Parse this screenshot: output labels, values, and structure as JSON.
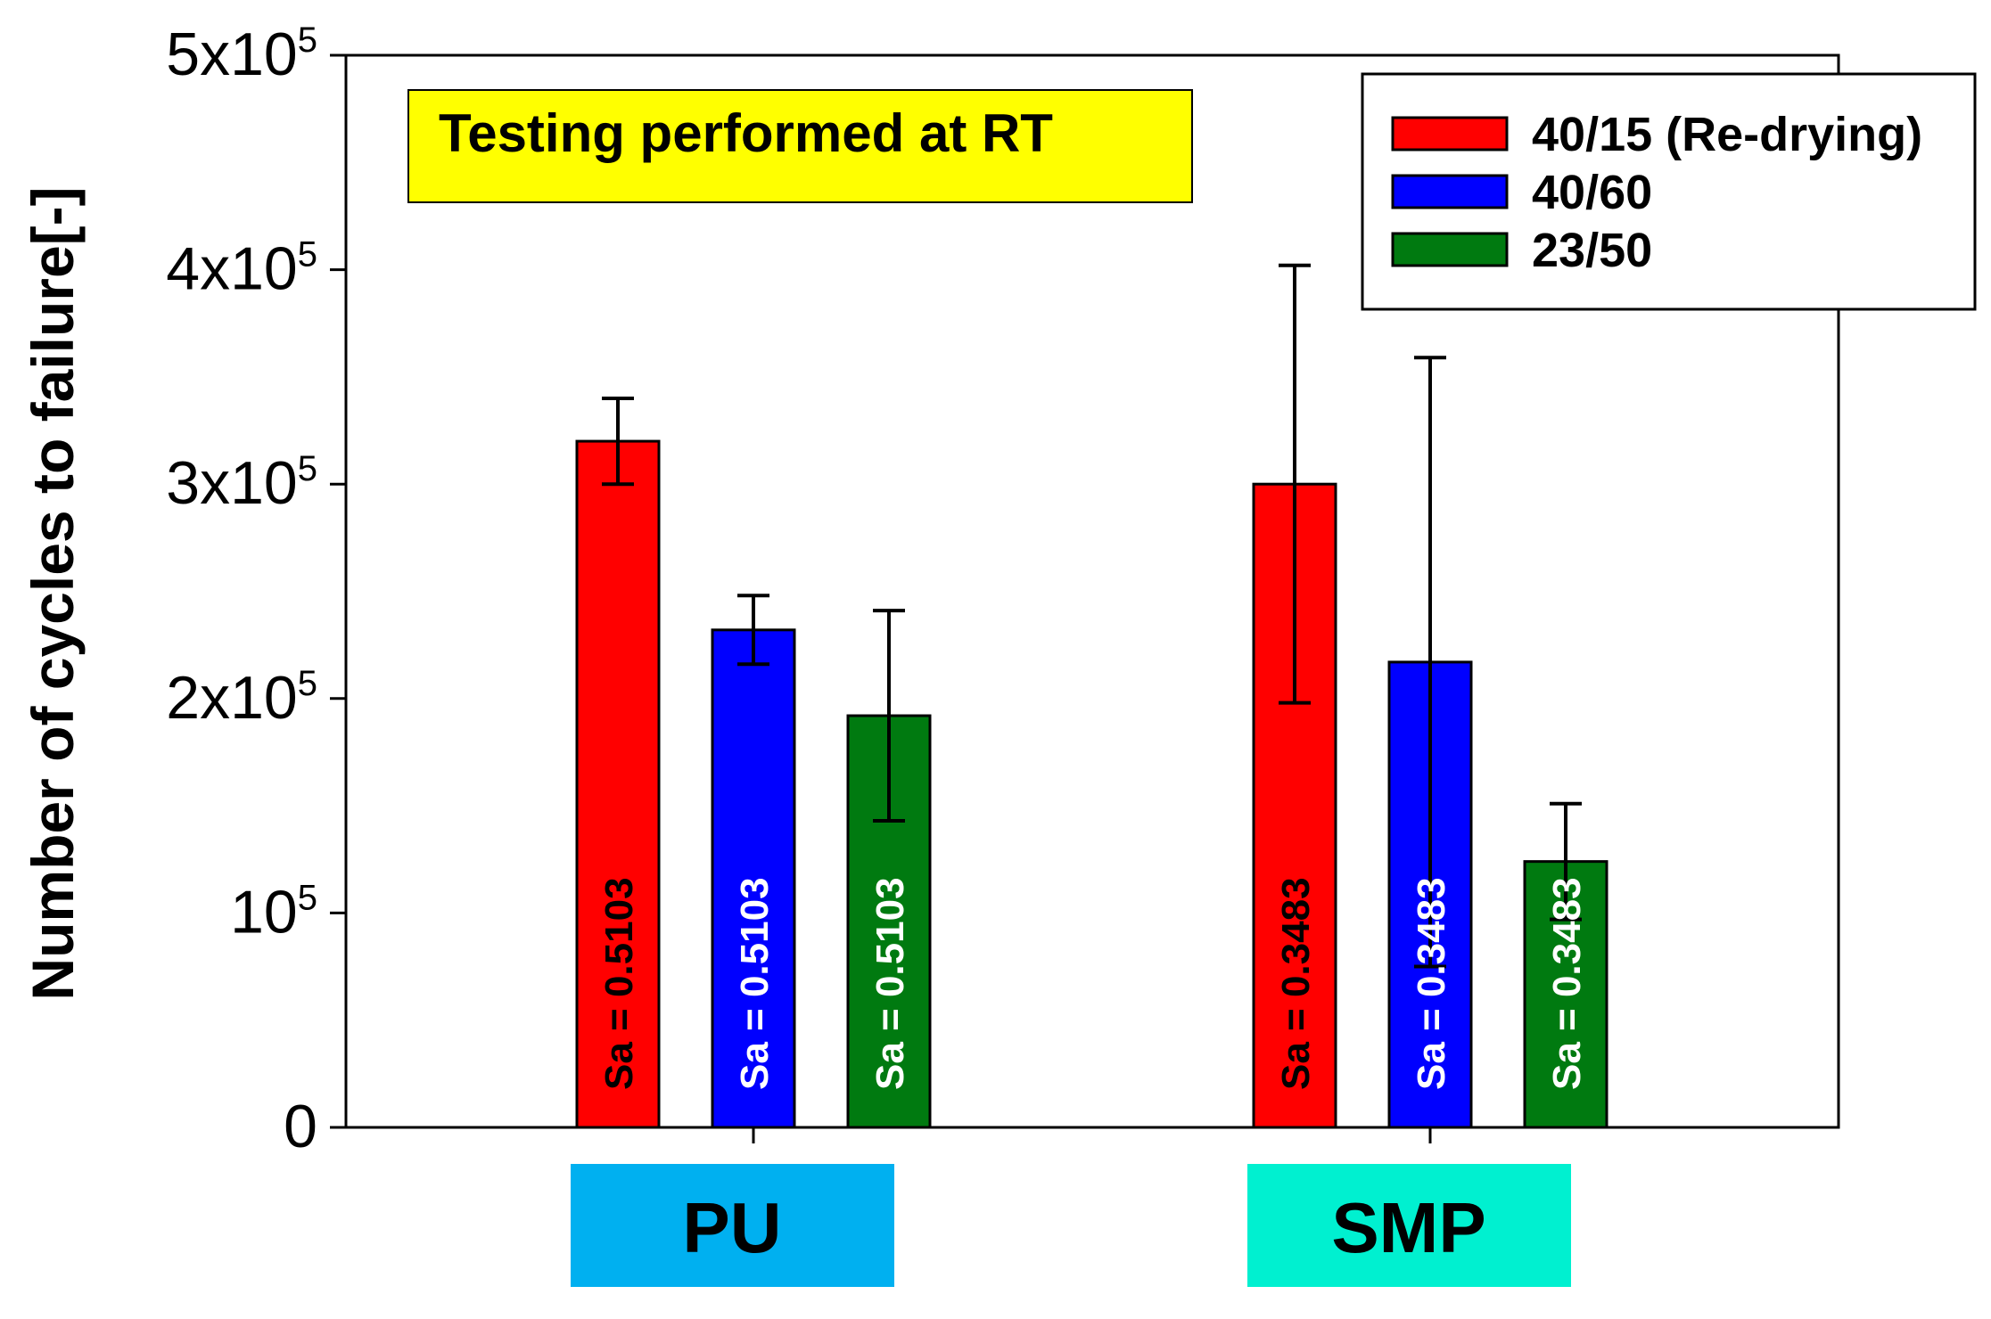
{
  "chart_data": {
    "type": "bar",
    "title": "",
    "xlabel": "",
    "ylabel": "Number of cycles to failure[-]",
    "ylim": [
      0,
      500000
    ],
    "y_ticks": [
      {
        "value": 0,
        "base": "0",
        "sup": ""
      },
      {
        "value": 100000,
        "base": "10",
        "sup": "5"
      },
      {
        "value": 200000,
        "base": "2x10",
        "sup": "5"
      },
      {
        "value": 300000,
        "base": "3x10",
        "sup": "5"
      },
      {
        "value": 400000,
        "base": "4x10",
        "sup": "5"
      },
      {
        "value": 500000,
        "base": "5x10",
        "sup": "5"
      }
    ],
    "categories": [
      "PU",
      "SMP"
    ],
    "category_colors": [
      "#00b0f0",
      "#00f0d0"
    ],
    "series": [
      {
        "name": "40/15 (Re-drying)",
        "color": "#ff0000",
        "label_color": "#000000",
        "values": [
          320000,
          300000
        ],
        "errors": [
          20000,
          102000
        ],
        "bar_labels": [
          "Sa = 0.5103",
          "Sa = 0.3483"
        ]
      },
      {
        "name": "40/60",
        "color": "#0000ff",
        "label_color": "#ffffff",
        "values": [
          232000,
          217000
        ],
        "errors": [
          16000,
          142000
        ],
        "bar_labels": [
          "Sa = 0.5103",
          "Sa = 0.3483"
        ]
      },
      {
        "name": "23/50",
        "color": "#007a10",
        "label_color": "#ffffff",
        "values": [
          192000,
          124000
        ],
        "errors": [
          49000,
          27000
        ],
        "bar_labels": [
          "Sa = 0.5103",
          "Sa = 0.3483"
        ]
      }
    ],
    "annotation": {
      "text": "Testing performed at RT",
      "color": "#ffff00"
    },
    "legend_position": "top-right",
    "grid": false
  }
}
